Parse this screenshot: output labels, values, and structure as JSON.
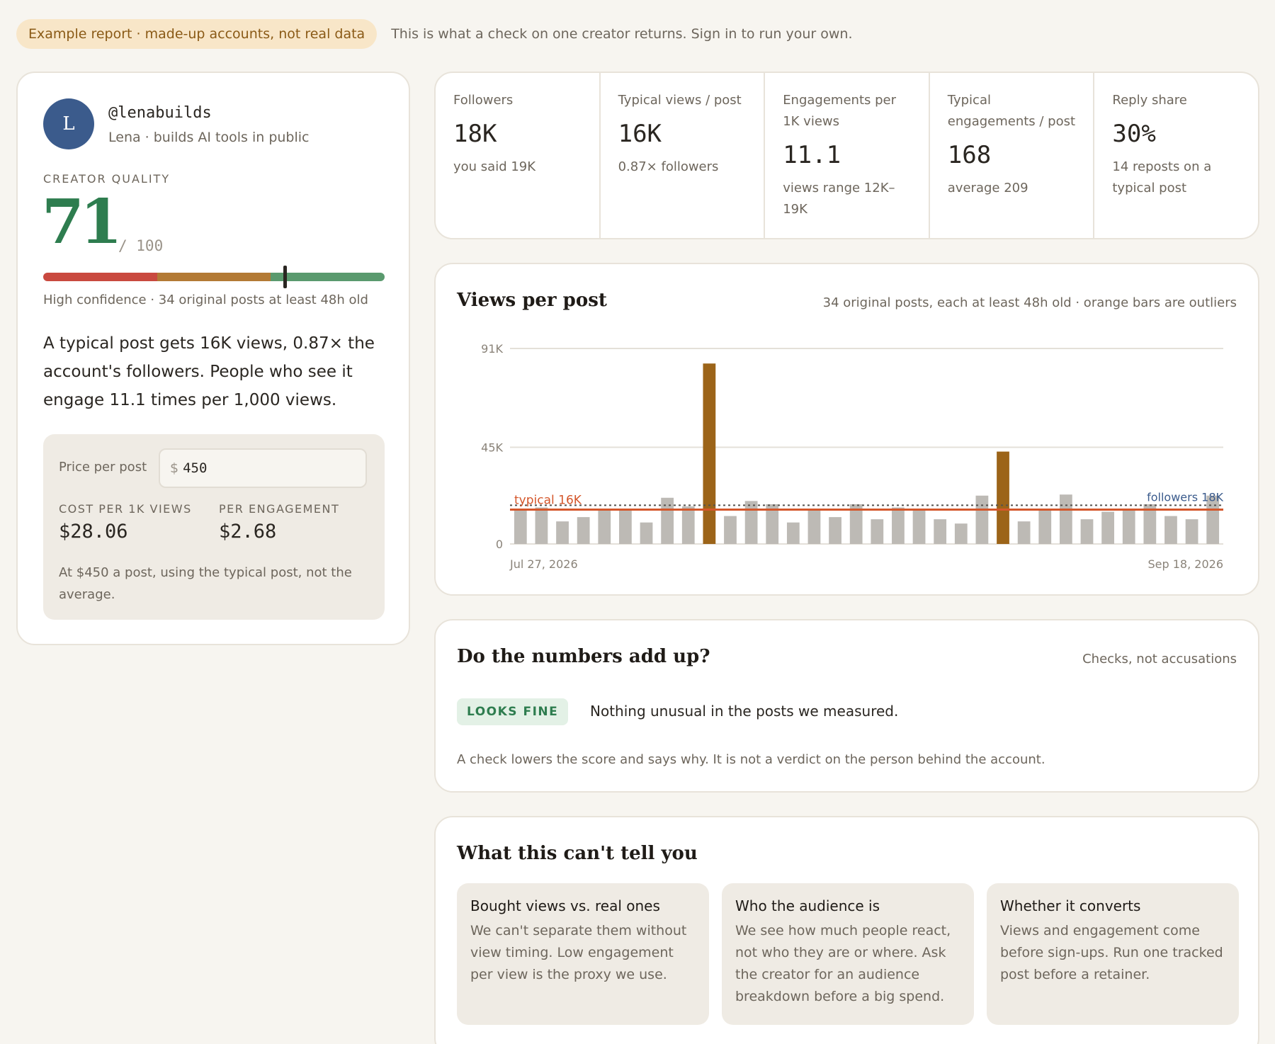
{
  "banner": {
    "pill": "Example report · made-up accounts, not real data",
    "note": "This is what a check on one creator returns. Sign in to run your own."
  },
  "profile": {
    "avatar_letter": "L",
    "handle": "@lenabuilds",
    "bio": "Lena · builds AI tools in public",
    "quality_label": "CREATOR QUALITY",
    "score": "71",
    "score_max": "/ 100",
    "score_value": 71,
    "meter_colors": [
      "#c9493f",
      "#b37a35",
      "#5a9a6e"
    ],
    "confidence": "High confidence · 34 original posts at least 48h old",
    "summary": "A typical post gets 16K views, 0.87× the account's followers. People who see it engage 11.1 times per 1,000 views."
  },
  "pricing": {
    "label": "Price per post",
    "currency": "$",
    "value": "450",
    "cost_label": "COST PER 1K VIEWS",
    "cost_value": "$28.06",
    "eng_label": "PER ENGAGEMENT",
    "eng_value": "$2.68",
    "note": "At $450 a post, using the typical post, not the average."
  },
  "stats": [
    {
      "label": "Followers",
      "value": "18K",
      "note": "you said 19K"
    },
    {
      "label": "Typical views / post",
      "value": "16K",
      "note": "0.87× followers"
    },
    {
      "label": "Engagements per 1K views",
      "value": "11.1",
      "note": "views range 12K–19K"
    },
    {
      "label": "Typical engagements / post",
      "value": "168",
      "note": "average 209"
    },
    {
      "label": "Reply share",
      "value": "30%",
      "note": "14 reposts on a typical post"
    }
  ],
  "chart": {
    "title": "Views per post",
    "aside": "34 original posts, each at least 48h old · orange bars are outliers"
  },
  "chart_data": {
    "type": "bar",
    "title": "Views per post",
    "x_start_label": "Jul 27, 2026",
    "x_end_label": "Sep 18, 2026",
    "y_ticks": [
      {
        "value": 0,
        "label": "0"
      },
      {
        "value": 45000,
        "label": "45K"
      },
      {
        "value": 91000,
        "label": "91K"
      }
    ],
    "ylim": [
      0,
      91000
    ],
    "values": [
      16000,
      17000,
      10500,
      12500,
      15500,
      16000,
      10000,
      21500,
      17500,
      84000,
      13000,
      20000,
      18500,
      10000,
      16000,
      12500,
      18500,
      11500,
      17000,
      16500,
      11500,
      9500,
      22500,
      43000,
      10500,
      15500,
      23000,
      11500,
      15000,
      16500,
      18500,
      13000,
      11500,
      22500
    ],
    "outliers": [
      9,
      23
    ],
    "typical": 16000,
    "typical_label": "typical 16K",
    "followers": 18000,
    "followers_label": "followers 18K",
    "colors": {
      "normal": "#bdbab5",
      "outlier": "#9c6419",
      "typical": "#d4562a",
      "followers": "#3b5b8c"
    }
  },
  "numbers": {
    "title": "Do the numbers add up?",
    "aside": "Checks, not accusations",
    "badge": "LOOKS FINE",
    "status": "Nothing unusual in the posts we measured.",
    "foot": "A check lowers the score and says why. It is not a verdict on the person behind the account."
  },
  "limits": {
    "title": "What this can't tell you",
    "items": [
      {
        "title": "Bought views vs. real ones",
        "body": "We can't separate them without view timing. Low engagement per view is the proxy we use."
      },
      {
        "title": "Who the audience is",
        "body": "We see how much people react, not who they are or where. Ask the creator for an audience breakdown before a big spend."
      },
      {
        "title": "Whether it converts",
        "body": "Views and engagement come before sign-ups. Run one tracked post before a retainer."
      }
    ]
  }
}
